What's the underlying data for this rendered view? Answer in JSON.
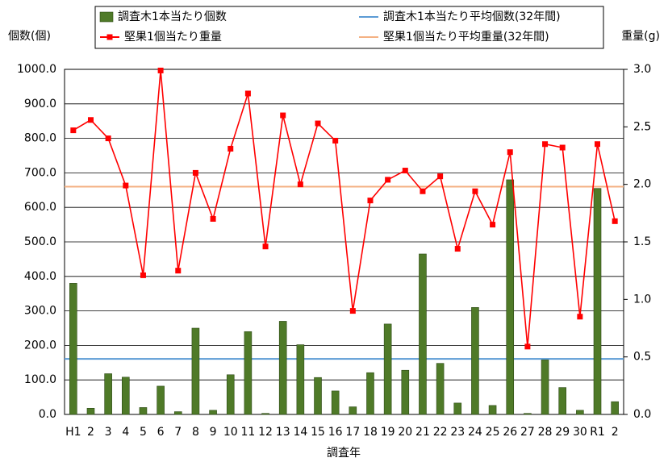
{
  "chart_data": {
    "type": "bar-line",
    "x_label": "調査年",
    "y_label": "個数(個)",
    "y2_label": "重量(g)",
    "categories": [
      "H1",
      "2",
      "3",
      "4",
      "5",
      "6",
      "7",
      "8",
      "9",
      "10",
      "11",
      "12",
      "13",
      "14",
      "15",
      "16",
      "17",
      "18",
      "19",
      "20",
      "21",
      "22",
      "23",
      "24",
      "25",
      "26",
      "27",
      "28",
      "29",
      "30",
      "R1",
      "2"
    ],
    "series": [
      {
        "name": "調査木1本当たり個数",
        "type": "bar",
        "color": "#4f7a28",
        "values": [
          380,
          18,
          118,
          108,
          20,
          82,
          8,
          250,
          12,
          115,
          240,
          3,
          270,
          202,
          107,
          68,
          22,
          121,
          262,
          128,
          465,
          148,
          33,
          310,
          26,
          680,
          3,
          158,
          78,
          12,
          655,
          37
        ]
      },
      {
        "name": "堅果1個当たり重量",
        "type": "line",
        "axis": "y2",
        "color": "#ff0000",
        "values": [
          2.47,
          2.56,
          2.4,
          1.99,
          1.21,
          2.99,
          1.25,
          2.1,
          1.7,
          2.31,
          2.79,
          1.46,
          2.6,
          2.0,
          2.53,
          2.38,
          0.9,
          1.86,
          2.04,
          2.12,
          1.94,
          2.07,
          1.44,
          1.94,
          1.65,
          2.28,
          0.59,
          2.35,
          2.32,
          0.85,
          2.35,
          1.68
        ]
      }
    ],
    "reference_lines": [
      {
        "name": "調査木1本当たり平均個数(32年間)",
        "color": "#5b9bd5",
        "value": 161
      },
      {
        "name": "堅果1個当たり平均重量(32年間)",
        "color": "#f4b183",
        "value": 1.98,
        "axis": "y2"
      }
    ],
    "ylim": [
      0,
      1000
    ],
    "yticks": [
      {
        "value": 0,
        "label": "0.0"
      },
      {
        "value": 100,
        "label": "100.0"
      },
      {
        "value": 200,
        "label": "200.0"
      },
      {
        "value": 300,
        "label": "300.0"
      },
      {
        "value": 400,
        "label": "400.0"
      },
      {
        "value": 500,
        "label": "500.0"
      },
      {
        "value": 600,
        "label": "600.0"
      },
      {
        "value": 700,
        "label": "700.0"
      },
      {
        "value": 800,
        "label": "800.0"
      },
      {
        "value": 900,
        "label": "900.0"
      },
      {
        "value": 1000,
        "label": "1000.0"
      }
    ],
    "y2lim": [
      0,
      3
    ],
    "y2ticks": [
      {
        "value": 0,
        "label": "0.0"
      },
      0.5,
      {
        "value": 1,
        "label": "1.0"
      },
      1.5,
      {
        "value": 2,
        "label": "2.0"
      },
      2.5,
      {
        "value": 3,
        "label": "3.0"
      }
    ],
    "grid": true
  }
}
